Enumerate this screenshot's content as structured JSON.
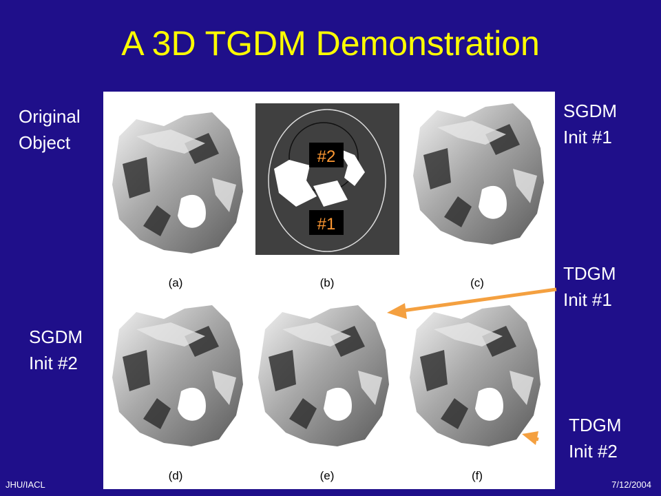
{
  "title": "A 3D TGDM Demonstration",
  "side_labels": [
    {
      "lines": [
        "Original",
        "Object"
      ]
    },
    {
      "lines": [
        "SGDM",
        "Init #1"
      ]
    },
    {
      "lines": [
        "TDGM",
        "Init #1"
      ]
    },
    {
      "lines": [
        "SGDM",
        "Init #2"
      ]
    },
    {
      "lines": [
        "TDGM",
        "Init #2"
      ]
    }
  ],
  "panel_captions": [
    "(a)",
    "(b)",
    "(c)",
    "(d)",
    "(e)",
    "(f)"
  ],
  "init_markers": [
    "#2",
    "#1"
  ],
  "footer": {
    "left": "JHU/IACL",
    "right": "7/12/2004"
  }
}
